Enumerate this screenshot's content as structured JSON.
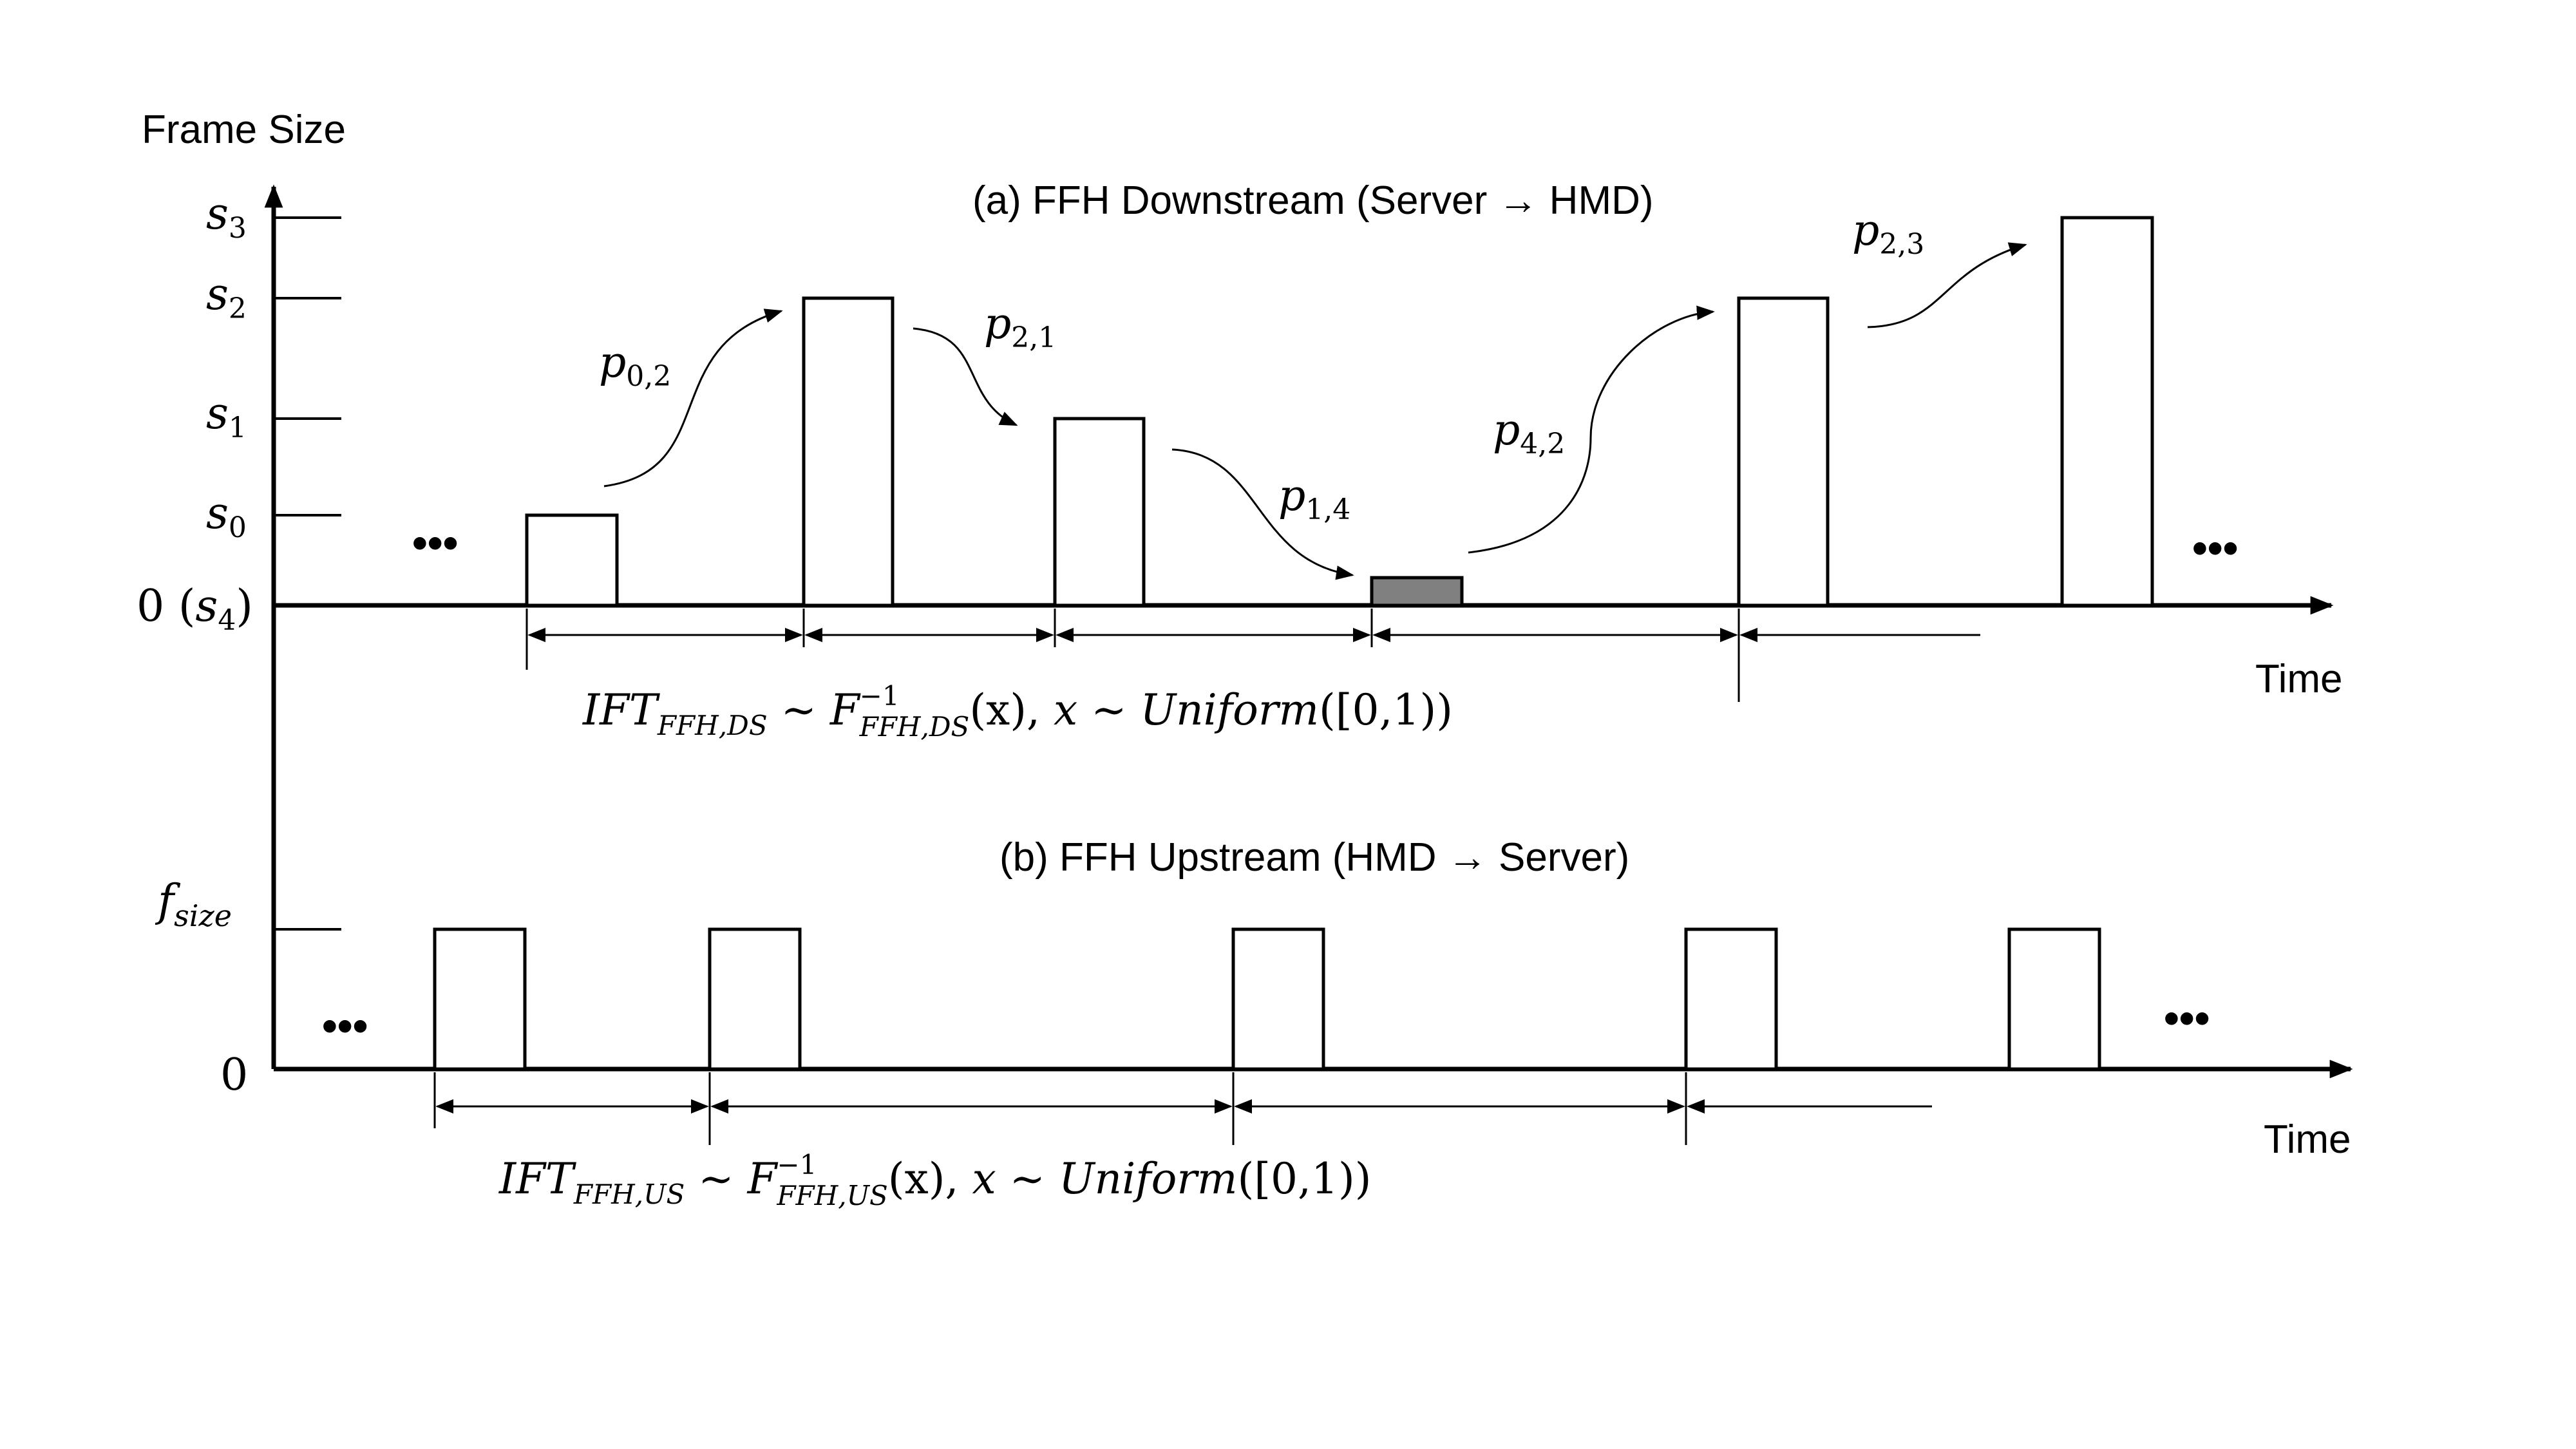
{
  "colors": {
    "ink": "#000000",
    "background": "#ffffff",
    "frame_fill": "#ffffff",
    "empty_frame_fill": "#808080"
  },
  "icons": {
    "right_arrow": "arrow-right-icon",
    "ellipsis": "ellipsis-icon"
  },
  "y_axis_title": "Frame Size",
  "downstream": {
    "title_before": "(a) FFH Downstream (Server ",
    "title_after": " HMD)",
    "arrow_glyph": "→",
    "time_label": "Time",
    "zero_label": "0",
    "zero_state": {
      "base": "s",
      "sub": "4"
    },
    "levels": [
      {
        "base": "s",
        "sub": "0"
      },
      {
        "base": "s",
        "sub": "1"
      },
      {
        "base": "s",
        "sub": "2"
      },
      {
        "base": "s",
        "sub": "3"
      }
    ],
    "frame_states": [
      "s0",
      "s2",
      "s1",
      "s4",
      "s2",
      "s3"
    ],
    "transitions": [
      {
        "base": "p",
        "sub": "0,2"
      },
      {
        "base": "p",
        "sub": "2,1"
      },
      {
        "base": "p",
        "sub": "1,4"
      },
      {
        "base": "p",
        "sub": "4,2"
      },
      {
        "base": "p",
        "sub": "2,3"
      }
    ],
    "formula": {
      "lhs": "IFT",
      "lhs_sub": "FFH,DS",
      "tilde": " ∼ ",
      "f": "F",
      "f_sup": "−1",
      "f_sub": "FFH,DS",
      "arg": "(x), ",
      "x": "x",
      "uniform": "Uniform",
      "interval": "([0,1))"
    },
    "ellipsis": "•••"
  },
  "upstream": {
    "title_before": "(b) FFH Upstream (HMD ",
    "title_after": " Server)",
    "arrow_glyph": "→",
    "time_label": "Time",
    "zero_label": "0",
    "level": {
      "base": "f",
      "sub": "size"
    },
    "frame_count": 5,
    "formula": {
      "lhs": "IFT",
      "lhs_sub": "FFH,US",
      "tilde": " ∼ ",
      "f": "F",
      "f_sup": "−1",
      "f_sub": "FFH,US",
      "arg": "(x), ",
      "x": "x",
      "uniform": "Uniform",
      "interval": "([0,1))"
    },
    "ellipsis": "•••"
  }
}
